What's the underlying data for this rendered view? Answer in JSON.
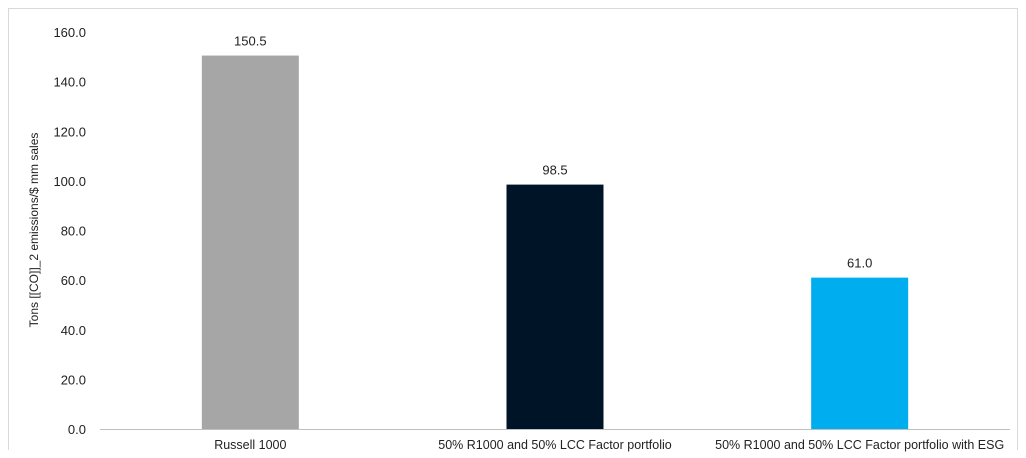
{
  "chart_data": {
    "type": "bar",
    "categories": [
      "Russell 1000",
      "50% R1000 and 50% LCC Factor portfolio",
      "50% R1000 and 50% LCC Factor portfolio with ESG"
    ],
    "values": [
      150.5,
      98.5,
      61.0
    ],
    "value_labels": [
      "150.5",
      "98.5",
      "61.0"
    ],
    "colors": [
      "#a6a6a6",
      "#001428",
      "#00aeef"
    ],
    "title": "",
    "xlabel": "",
    "ylabel": "Tons [[CO]]_2 emissions/$ mm sales",
    "ylim": [
      0,
      160
    ],
    "yticks": [
      0,
      20,
      40,
      60,
      80,
      100,
      120,
      140,
      160
    ],
    "ytick_labels": [
      "0.0",
      "20.0",
      "40.0",
      "60.0",
      "80.0",
      "100.0",
      "120.0",
      "140.0",
      "160.0"
    ],
    "grid": false,
    "legend": "none"
  }
}
